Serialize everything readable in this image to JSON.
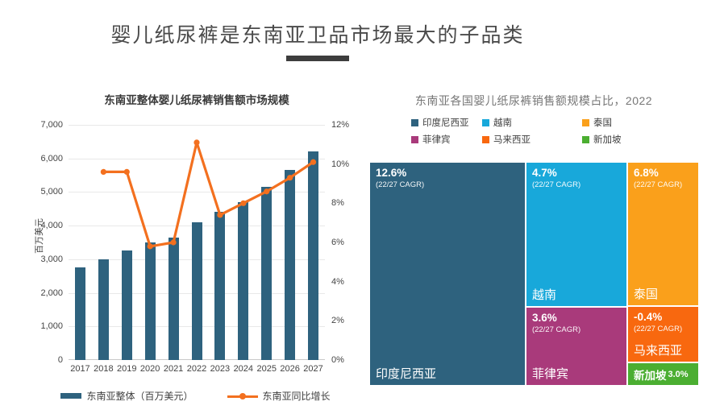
{
  "page": {
    "title": "婴儿纸尿裤是东南亚卫品市场最大的子品类"
  },
  "chart_data": [
    {
      "type": "bar+line",
      "title": "东南亚整体婴儿纸尿裤销售额市场规模",
      "categories": [
        "2017",
        "2018",
        "2019",
        "2020",
        "2021",
        "2022",
        "2023",
        "2024",
        "2025",
        "2026",
        "2027"
      ],
      "series": [
        {
          "name": "东南亚整体（百万美元）",
          "type": "bar",
          "axis": "left",
          "color": "#2E627E",
          "values": [
            2750,
            3000,
            3250,
            3500,
            3650,
            4100,
            4400,
            4700,
            5150,
            5650,
            6200
          ]
        },
        {
          "name": "东南亚同比增长",
          "type": "line",
          "axis": "right",
          "color": "#F3701F",
          "values": [
            null,
            9.6,
            9.6,
            5.8,
            6.0,
            11.1,
            7.4,
            8.0,
            8.6,
            9.3,
            10.1
          ]
        }
      ],
      "left_axis": {
        "label": "百万美元",
        "min": 0,
        "max": 7000,
        "step": 1000,
        "tick_format": "thousands-comma"
      },
      "right_axis": {
        "min": 0,
        "max": 12,
        "step": 2,
        "tick_suffix": "%"
      },
      "grid": true,
      "legend_position": "bottom"
    },
    {
      "type": "treemap",
      "title": "东南亚各国婴儿纸尿裤销售额规模占比，2022",
      "legend": [
        {
          "label": "印度尼西亚",
          "color": "#2E627E"
        },
        {
          "label": "越南",
          "color": "#18A8DA"
        },
        {
          "label": "泰国",
          "color": "#FAA01B"
        },
        {
          "label": "菲律宾",
          "color": "#A93A7B"
        },
        {
          "label": "马来西亚",
          "color": "#F8680F"
        },
        {
          "label": "新加坡",
          "color": "#4BAE31"
        }
      ],
      "columns": [
        {
          "width_pct": 47.2,
          "cells": [
            {
              "country": "印度尼西亚",
              "cagr": "12.6%",
              "cagr_note": "(22/27 CAGR)",
              "color": "#2E627E",
              "height_pct": 100,
              "share_pct": 47.2
            }
          ]
        },
        {
          "width_pct": 30.5,
          "cells": [
            {
              "country": "越南",
              "cagr": "4.7%",
              "cagr_note": "(22/27 CAGR)",
              "color": "#18A8DA",
              "height_pct": 64.9,
              "share_pct": 19.8
            },
            {
              "country": "菲律宾",
              "cagr": "3.6%",
              "cagr_note": "(22/27 CAGR)",
              "color": "#A93A7B",
              "height_pct": 35.1,
              "share_pct": 10.5
            }
          ]
        },
        {
          "width_pct": 21.4,
          "cells": [
            {
              "country": "泰国",
              "cagr": "6.8%",
              "cagr_note": "(22/27 CAGR)",
              "color": "#FAA01B",
              "height_pct": 64.9,
              "share_pct": 13.9
            },
            {
              "country": "马来西亚",
              "cagr": "-0.4%",
              "cagr_note": "(22/27 CAGR)",
              "color": "#F8680F",
              "height_pct": 25.3,
              "share_pct": 5.1
            },
            {
              "country": "新加坡",
              "cagr": "3.0%",
              "color": "#4BAE31",
              "height_pct": 9.8,
              "share_pct": 2.1,
              "compact": true
            }
          ]
        }
      ]
    }
  ]
}
